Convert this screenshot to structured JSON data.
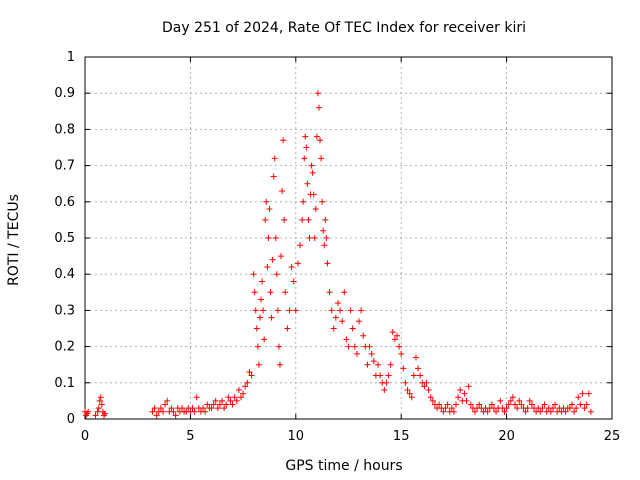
{
  "chart_data": {
    "type": "scatter",
    "title": "Day 251 of 2024, Rate Of TEC Index for receiver kiri",
    "xlabel": "GPS time / hours",
    "ylabel": "ROTI / TECUs",
    "xlim": [
      0,
      25
    ],
    "ylim": [
      0,
      1
    ],
    "xticks": [
      "0",
      "5",
      "10",
      "15",
      "20",
      "25"
    ],
    "yticks": [
      "0",
      "0.1",
      "0.2",
      "0.3",
      "0.4",
      "0.5",
      "0.6",
      "0.7",
      "0.8",
      "0.9",
      "1"
    ],
    "grid": true,
    "marker": "+",
    "color": "#ff0000",
    "series": [
      {
        "points": [
          [
            0.0,
            0.02
          ],
          [
            0.05,
            0.01
          ],
          [
            0.1,
            0.015
          ],
          [
            0.15,
            0.02
          ],
          [
            0.5,
            0.01
          ],
          [
            0.6,
            0.02
          ],
          [
            0.65,
            0.03
          ],
          [
            0.7,
            0.05
          ],
          [
            0.75,
            0.06
          ],
          [
            0.8,
            0.04
          ],
          [
            0.85,
            0.02
          ],
          [
            0.9,
            0.01
          ],
          [
            0.95,
            0.015
          ],
          [
            3.2,
            0.02
          ],
          [
            3.3,
            0.03
          ],
          [
            3.4,
            0.01
          ],
          [
            3.5,
            0.02
          ],
          [
            3.6,
            0.03
          ],
          [
            3.7,
            0.02
          ],
          [
            3.8,
            0.04
          ],
          [
            3.9,
            0.05
          ],
          [
            4.0,
            0.02
          ],
          [
            4.1,
            0.03
          ],
          [
            4.2,
            0.02
          ],
          [
            4.3,
            0.01
          ],
          [
            4.4,
            0.03
          ],
          [
            4.5,
            0.02
          ],
          [
            4.6,
            0.03
          ],
          [
            4.7,
            0.02
          ],
          [
            4.8,
            0.02
          ],
          [
            4.9,
            0.03
          ],
          [
            5.0,
            0.02
          ],
          [
            5.1,
            0.03
          ],
          [
            5.2,
            0.02
          ],
          [
            5.3,
            0.06
          ],
          [
            5.4,
            0.03
          ],
          [
            5.5,
            0.02
          ],
          [
            5.6,
            0.03
          ],
          [
            5.7,
            0.02
          ],
          [
            5.8,
            0.04
          ],
          [
            5.9,
            0.03
          ],
          [
            6.0,
            0.03
          ],
          [
            6.1,
            0.04
          ],
          [
            6.2,
            0.05
          ],
          [
            6.3,
            0.03
          ],
          [
            6.4,
            0.04
          ],
          [
            6.5,
            0.05
          ],
          [
            6.6,
            0.03
          ],
          [
            6.7,
            0.04
          ],
          [
            6.8,
            0.06
          ],
          [
            6.9,
            0.05
          ],
          [
            7.0,
            0.04
          ],
          [
            7.1,
            0.06
          ],
          [
            7.2,
            0.05
          ],
          [
            7.3,
            0.08
          ],
          [
            7.4,
            0.06
          ],
          [
            7.5,
            0.07
          ],
          [
            7.6,
            0.09
          ],
          [
            7.7,
            0.1
          ],
          [
            7.8,
            0.13
          ],
          [
            7.9,
            0.12
          ],
          [
            8.0,
            0.4
          ],
          [
            8.05,
            0.35
          ],
          [
            8.1,
            0.3
          ],
          [
            8.15,
            0.25
          ],
          [
            8.2,
            0.2
          ],
          [
            8.25,
            0.15
          ],
          [
            8.3,
            0.28
          ],
          [
            8.35,
            0.33
          ],
          [
            8.4,
            0.38
          ],
          [
            8.45,
            0.3
          ],
          [
            8.5,
            0.22
          ],
          [
            8.55,
            0.55
          ],
          [
            8.6,
            0.6
          ],
          [
            8.65,
            0.42
          ],
          [
            8.7,
            0.5
          ],
          [
            8.75,
            0.58
          ],
          [
            8.8,
            0.35
          ],
          [
            8.85,
            0.28
          ],
          [
            8.9,
            0.44
          ],
          [
            8.95,
            0.67
          ],
          [
            9.0,
            0.72
          ],
          [
            9.05,
            0.5
          ],
          [
            9.1,
            0.4
          ],
          [
            9.15,
            0.3
          ],
          [
            9.2,
            0.2
          ],
          [
            9.25,
            0.15
          ],
          [
            9.3,
            0.45
          ],
          [
            9.35,
            0.63
          ],
          [
            9.4,
            0.77
          ],
          [
            9.45,
            0.55
          ],
          [
            9.5,
            0.35
          ],
          [
            9.6,
            0.25
          ],
          [
            9.7,
            0.3
          ],
          [
            9.8,
            0.42
          ],
          [
            9.9,
            0.38
          ],
          [
            10.0,
            0.3
          ],
          [
            10.1,
            0.43
          ],
          [
            10.2,
            0.48
          ],
          [
            10.3,
            0.55
          ],
          [
            10.35,
            0.6
          ],
          [
            10.4,
            0.72
          ],
          [
            10.45,
            0.78
          ],
          [
            10.5,
            0.75
          ],
          [
            10.55,
            0.65
          ],
          [
            10.6,
            0.55
          ],
          [
            10.65,
            0.5
          ],
          [
            10.7,
            0.62
          ],
          [
            10.75,
            0.7
          ],
          [
            10.8,
            0.68
          ],
          [
            10.85,
            0.62
          ],
          [
            10.9,
            0.5
          ],
          [
            10.95,
            0.58
          ],
          [
            11.0,
            0.78
          ],
          [
            11.05,
            0.9
          ],
          [
            11.1,
            0.86
          ],
          [
            11.15,
            0.77
          ],
          [
            11.2,
            0.72
          ],
          [
            11.25,
            0.6
          ],
          [
            11.3,
            0.52
          ],
          [
            11.35,
            0.48
          ],
          [
            11.4,
            0.55
          ],
          [
            11.45,
            0.5
          ],
          [
            11.5,
            0.43
          ],
          [
            11.6,
            0.35
          ],
          [
            11.7,
            0.3
          ],
          [
            11.8,
            0.25
          ],
          [
            11.9,
            0.28
          ],
          [
            12.0,
            0.32
          ],
          [
            12.1,
            0.3
          ],
          [
            12.2,
            0.27
          ],
          [
            12.3,
            0.35
          ],
          [
            12.4,
            0.22
          ],
          [
            12.5,
            0.2
          ],
          [
            12.6,
            0.3
          ],
          [
            12.7,
            0.25
          ],
          [
            12.8,
            0.2
          ],
          [
            12.9,
            0.18
          ],
          [
            13.0,
            0.27
          ],
          [
            13.1,
            0.3
          ],
          [
            13.2,
            0.23
          ],
          [
            13.3,
            0.2
          ],
          [
            13.4,
            0.15
          ],
          [
            13.5,
            0.2
          ],
          [
            13.6,
            0.18
          ],
          [
            13.7,
            0.16
          ],
          [
            13.8,
            0.12
          ],
          [
            13.9,
            0.15
          ],
          [
            14.0,
            0.12
          ],
          [
            14.1,
            0.1
          ],
          [
            14.2,
            0.08
          ],
          [
            14.3,
            0.1
          ],
          [
            14.4,
            0.12
          ],
          [
            14.5,
            0.15
          ],
          [
            14.6,
            0.24
          ],
          [
            14.7,
            0.22
          ],
          [
            14.8,
            0.23
          ],
          [
            14.9,
            0.2
          ],
          [
            15.0,
            0.18
          ],
          [
            15.1,
            0.14
          ],
          [
            15.2,
            0.1
          ],
          [
            15.3,
            0.08
          ],
          [
            15.4,
            0.07
          ],
          [
            15.5,
            0.06
          ],
          [
            15.6,
            0.12
          ],
          [
            15.7,
            0.17
          ],
          [
            15.8,
            0.14
          ],
          [
            15.9,
            0.12
          ],
          [
            16.0,
            0.1
          ],
          [
            16.1,
            0.09
          ],
          [
            16.2,
            0.1
          ],
          [
            16.3,
            0.08
          ],
          [
            16.4,
            0.06
          ],
          [
            16.5,
            0.05
          ],
          [
            16.6,
            0.04
          ],
          [
            16.7,
            0.03
          ],
          [
            16.8,
            0.04
          ],
          [
            16.9,
            0.03
          ],
          [
            17.0,
            0.02
          ],
          [
            17.1,
            0.03
          ],
          [
            17.2,
            0.04
          ],
          [
            17.3,
            0.02
          ],
          [
            17.4,
            0.03
          ],
          [
            17.5,
            0.02
          ],
          [
            17.6,
            0.04
          ],
          [
            17.7,
            0.06
          ],
          [
            17.8,
            0.08
          ],
          [
            17.9,
            0.05
          ],
          [
            18.0,
            0.07
          ],
          [
            18.1,
            0.05
          ],
          [
            18.2,
            0.09
          ],
          [
            18.3,
            0.04
          ],
          [
            18.4,
            0.03
          ],
          [
            18.5,
            0.02
          ],
          [
            18.6,
            0.03
          ],
          [
            18.7,
            0.04
          ],
          [
            18.8,
            0.03
          ],
          [
            18.9,
            0.02
          ],
          [
            19.0,
            0.03
          ],
          [
            19.1,
            0.02
          ],
          [
            19.2,
            0.03
          ],
          [
            19.3,
            0.04
          ],
          [
            19.4,
            0.03
          ],
          [
            19.5,
            0.02
          ],
          [
            19.6,
            0.03
          ],
          [
            19.7,
            0.05
          ],
          [
            19.8,
            0.03
          ],
          [
            19.9,
            0.02
          ],
          [
            20.0,
            0.03
          ],
          [
            20.1,
            0.04
          ],
          [
            20.2,
            0.05
          ],
          [
            20.3,
            0.06
          ],
          [
            20.4,
            0.04
          ],
          [
            20.5,
            0.03
          ],
          [
            20.6,
            0.05
          ],
          [
            20.7,
            0.04
          ],
          [
            20.8,
            0.03
          ],
          [
            20.9,
            0.02
          ],
          [
            21.0,
            0.03
          ],
          [
            21.1,
            0.05
          ],
          [
            21.2,
            0.04
          ],
          [
            21.3,
            0.03
          ],
          [
            21.4,
            0.02
          ],
          [
            21.5,
            0.03
          ],
          [
            21.6,
            0.02
          ],
          [
            21.7,
            0.03
          ],
          [
            21.8,
            0.04
          ],
          [
            21.9,
            0.02
          ],
          [
            22.0,
            0.03
          ],
          [
            22.1,
            0.02
          ],
          [
            22.2,
            0.03
          ],
          [
            22.3,
            0.04
          ],
          [
            22.4,
            0.02
          ],
          [
            22.5,
            0.03
          ],
          [
            22.6,
            0.02
          ],
          [
            22.7,
            0.03
          ],
          [
            22.8,
            0.02
          ],
          [
            22.9,
            0.03
          ],
          [
            23.0,
            0.03
          ],
          [
            23.1,
            0.04
          ],
          [
            23.2,
            0.02
          ],
          [
            23.3,
            0.03
          ],
          [
            23.4,
            0.06
          ],
          [
            23.5,
            0.04
          ],
          [
            23.6,
            0.07
          ],
          [
            23.7,
            0.03
          ],
          [
            23.8,
            0.04
          ],
          [
            23.9,
            0.07
          ],
          [
            24.0,
            0.02
          ]
        ]
      }
    ]
  }
}
